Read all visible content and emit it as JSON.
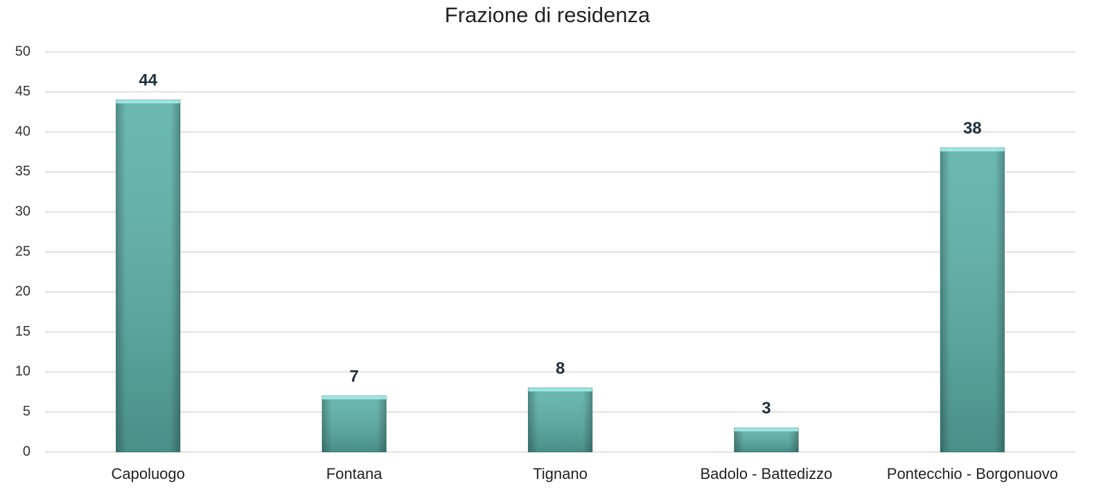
{
  "chart_data": {
    "type": "bar",
    "title": "Frazione di residenza",
    "categories": [
      "Capoluogo",
      "Fontana",
      "Tignano",
      "Badolo - Battedizzo",
      "Pontecchio - Borgonuovo"
    ],
    "values": [
      44,
      7,
      8,
      3,
      38
    ],
    "color": "#5bb1a9",
    "ylim": [
      0,
      50
    ],
    "yticks": [
      0,
      5,
      10,
      15,
      20,
      25,
      30,
      35,
      40,
      45,
      50
    ],
    "grid": true
  }
}
